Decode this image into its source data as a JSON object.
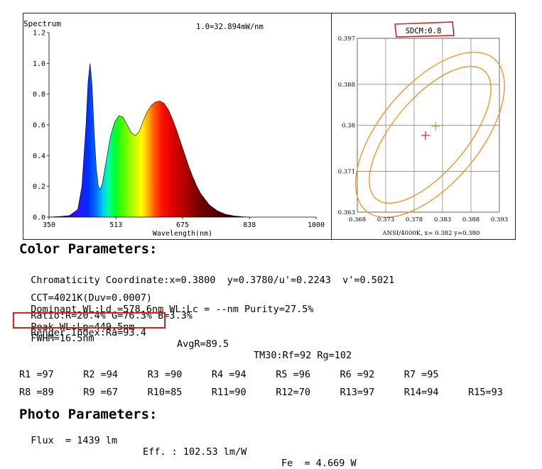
{
  "chart_data": [
    {
      "type": "line",
      "title": "Spectrum",
      "subtitle": "1.0=32.894mW/nm",
      "xlabel": "Wavelength(nm)",
      "ylabel": "",
      "xlim": [
        350,
        1000
      ],
      "ylim": [
        0,
        1.2
      ],
      "xticks": [
        "350",
        "513",
        "675",
        "838",
        "1000"
      ],
      "yticks": [
        "0.0",
        "0.2",
        "0.4",
        "0.6",
        "0.8",
        "1.0",
        "1.2"
      ],
      "grid": false,
      "fill": "wavelength-color-gradient",
      "x": [
        350,
        380,
        400,
        420,
        430,
        440,
        445,
        450,
        455,
        460,
        465,
        470,
        475,
        480,
        490,
        500,
        510,
        520,
        530,
        540,
        550,
        560,
        570,
        580,
        590,
        600,
        610,
        620,
        630,
        640,
        650,
        660,
        670,
        680,
        690,
        700,
        710,
        720,
        740,
        760,
        780,
        800,
        820,
        840
      ],
      "y": [
        0.0,
        0.005,
        0.01,
        0.05,
        0.2,
        0.6,
        0.88,
        1.0,
        0.85,
        0.55,
        0.32,
        0.2,
        0.18,
        0.22,
        0.38,
        0.53,
        0.62,
        0.66,
        0.65,
        0.6,
        0.55,
        0.53,
        0.56,
        0.63,
        0.69,
        0.73,
        0.75,
        0.755,
        0.74,
        0.7,
        0.64,
        0.57,
        0.49,
        0.41,
        0.33,
        0.26,
        0.2,
        0.15,
        0.08,
        0.04,
        0.018,
        0.008,
        0.003,
        0.0
      ]
    },
    {
      "type": "scatter",
      "title": "SDCM:0.8",
      "caption": "ANSI/4000K, x= 0.382 y=0.380",
      "xlim": [
        0.368,
        0.393
      ],
      "ylim": [
        0.363,
        0.397
      ],
      "xticks": [
        "0.368",
        "0.373",
        "0.378",
        "0.383",
        "0.388",
        "0.393"
      ],
      "yticks": [
        "0.397",
        "0.388",
        "0.38",
        "0.371",
        "0.363"
      ],
      "grid": true,
      "points": [
        {
          "x": 0.38,
          "y": 0.378,
          "color": "#e02020"
        },
        {
          "x": 0.3818,
          "y": 0.3798,
          "color": "#f0901a"
        }
      ],
      "ellipse_color": "#f0901a"
    }
  ],
  "color_params": {
    "title": "Color Parameters:",
    "line1": {
      "chromaticity": "Chromaticity Coordinate:x=0.3800  y=0.3780/u'=0.2243  v'=0.5021"
    },
    "line2": {
      "cct": "CCT=4021K(Duv=0.0007)",
      "dominant": "Dominant WL:Ld =578.6nm WL:Lc = --nm Purity=27.5%"
    },
    "line3": {
      "ratio": "Ratio:R=20.4% G=76.3% B=3.3%",
      "peak": "Peak WL:Lp=449.5nm",
      "fwhm": "FWHM=16.5nm"
    },
    "line4": {
      "render_index": "Render Index:Ra=93.4",
      "avgr": "AvgR=89.5",
      "tm30": "TM30:Rf=92 Rg=102"
    },
    "r_values_row1": [
      "R1 =97",
      "R2 =94",
      "R3 =90",
      "R4 =94",
      "R5 =96",
      "R6 =92",
      "R7 =95"
    ],
    "r_values_row2": [
      "R8 =89",
      "R9 =67",
      "R10=85",
      "R11=90",
      "R12=70",
      "R13=97",
      "R14=94",
      "R15=93"
    ],
    "highlight_color": "#d92020"
  },
  "photo_params": {
    "title": "Photo Parameters:",
    "flux": "Flux  = 1439 lm",
    "eff": "Eff. : 102.53 lm/W",
    "fe": "Fe  = 4.669 W"
  }
}
